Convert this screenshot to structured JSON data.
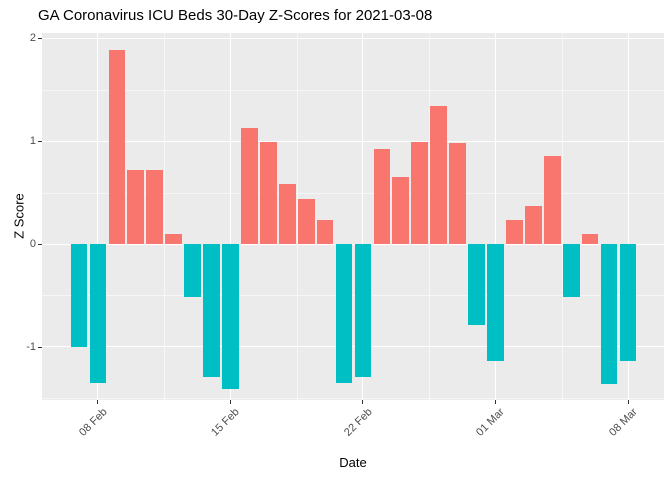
{
  "chart_data": {
    "type": "bar",
    "title": "GA Coronavirus ICU Beds 30-Day Z-Scores for 2021-03-08",
    "xlabel": "Date",
    "ylabel": "Z Score",
    "categories": [
      "07 Feb",
      "08 Feb",
      "09 Feb",
      "10 Feb",
      "11 Feb",
      "12 Feb",
      "13 Feb",
      "14 Feb",
      "15 Feb",
      "16 Feb",
      "17 Feb",
      "18 Feb",
      "19 Feb",
      "20 Feb",
      "21 Feb",
      "22 Feb",
      "23 Feb",
      "24 Feb",
      "25 Feb",
      "26 Feb",
      "27 Feb",
      "28 Feb",
      "01 Mar",
      "02 Mar",
      "03 Mar",
      "04 Mar",
      "05 Mar",
      "06 Mar",
      "07 Mar",
      "08 Mar"
    ],
    "values": [
      -1.0,
      -1.35,
      1.89,
      0.72,
      0.72,
      0.1,
      -0.52,
      -1.29,
      -1.41,
      1.13,
      0.99,
      0.58,
      0.44,
      0.23,
      -1.35,
      -1.29,
      0.92,
      0.65,
      0.99,
      1.34,
      0.98,
      -0.79,
      -1.14,
      0.23,
      0.37,
      0.86,
      -0.52,
      0.1,
      -1.36,
      -1.14
    ],
    "x_ticks": [
      {
        "label": "08 Feb",
        "index": 1
      },
      {
        "label": "15 Feb",
        "index": 8
      },
      {
        "label": "22 Feb",
        "index": 15
      },
      {
        "label": "01 Mar",
        "index": 22
      },
      {
        "label": "08 Mar",
        "index": 29
      }
    ],
    "y_ticks": [
      {
        "label": "2",
        "value": 2
      },
      {
        "label": "1",
        "value": 1
      },
      {
        "label": "0",
        "value": 0
      },
      {
        "label": "-1",
        "value": -1
      }
    ],
    "ylim": [
      -1.51,
      2.05
    ],
    "grid": {
      "on": true,
      "y_minor": [
        1.5,
        0.5,
        -0.5,
        -1.5
      ],
      "x_minor_indices": [
        4.5,
        11.5,
        18.5,
        25.5
      ],
      "gridline_color": "#FFFFFF",
      "panel_color": "#EBEBEB"
    },
    "colors": {
      "positive": "#F8766D",
      "negative": "#00BFC4"
    },
    "legend_position": "none"
  }
}
